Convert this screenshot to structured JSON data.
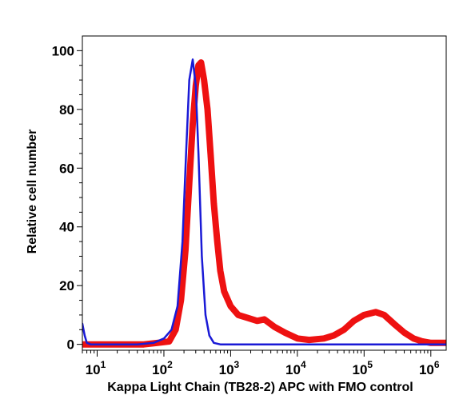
{
  "chart_data": {
    "type": "line",
    "title": "",
    "xlabel": "Kappa Light Chain (TB28-2) APC with FMO control",
    "ylabel": "Relative cell number",
    "x_scale": "log",
    "xlim": [
      6,
      1700000
    ],
    "ylim": [
      -2,
      105
    ],
    "grid": false,
    "legend": "none",
    "y_ticks": [
      {
        "value": 0,
        "label": "0"
      },
      {
        "value": 20,
        "label": "20"
      },
      {
        "value": 40,
        "label": "40"
      },
      {
        "value": 60,
        "label": "60"
      },
      {
        "value": 80,
        "label": "80"
      },
      {
        "value": 100,
        "label": "100"
      }
    ],
    "x_ticks": [
      {
        "value": 10,
        "base": "10",
        "exp": "1"
      },
      {
        "value": 100,
        "base": "10",
        "exp": "2"
      },
      {
        "value": 1000,
        "base": "10",
        "exp": "3"
      },
      {
        "value": 10000,
        "base": "10",
        "exp": "4"
      },
      {
        "value": 100000,
        "base": "10",
        "exp": "5"
      },
      {
        "value": 1000000,
        "base": "10",
        "exp": "6"
      }
    ],
    "series": [
      {
        "color": "#ee1111",
        "stroke": 8,
        "points": [
          [
            6,
            0
          ],
          [
            10,
            0
          ],
          [
            20,
            0
          ],
          [
            50,
            0
          ],
          [
            80,
            0.5
          ],
          [
            120,
            1
          ],
          [
            150,
            5
          ],
          [
            180,
            15
          ],
          [
            210,
            32
          ],
          [
            240,
            55
          ],
          [
            270,
            75
          ],
          [
            300,
            88
          ],
          [
            330,
            95
          ],
          [
            360,
            96
          ],
          [
            400,
            90
          ],
          [
            450,
            80
          ],
          [
            500,
            65
          ],
          [
            560,
            48
          ],
          [
            630,
            35
          ],
          [
            700,
            25
          ],
          [
            800,
            18
          ],
          [
            1000,
            13
          ],
          [
            1300,
            10
          ],
          [
            1800,
            9
          ],
          [
            2500,
            8
          ],
          [
            3200,
            8.5
          ],
          [
            4500,
            6
          ],
          [
            6500,
            4
          ],
          [
            10000,
            2
          ],
          [
            15000,
            1.5
          ],
          [
            25000,
            2
          ],
          [
            35000,
            3
          ],
          [
            50000,
            5
          ],
          [
            70000,
            8
          ],
          [
            100000,
            10
          ],
          [
            150000,
            11
          ],
          [
            200000,
            10
          ],
          [
            280000,
            7
          ],
          [
            400000,
            4
          ],
          [
            550000,
            2
          ],
          [
            750000,
            1
          ],
          [
            1000000,
            0.5
          ],
          [
            1700000,
            0.5
          ]
        ]
      },
      {
        "color": "#1a1ad6",
        "stroke": 2.5,
        "points": [
          [
            6,
            7
          ],
          [
            6.5,
            3
          ],
          [
            7,
            0.5
          ],
          [
            8,
            0
          ],
          [
            15,
            0
          ],
          [
            40,
            0
          ],
          [
            70,
            0.5
          ],
          [
            100,
            2
          ],
          [
            130,
            5
          ],
          [
            160,
            13
          ],
          [
            190,
            35
          ],
          [
            215,
            65
          ],
          [
            240,
            90
          ],
          [
            270,
            97
          ],
          [
            300,
            88
          ],
          [
            330,
            65
          ],
          [
            370,
            30
          ],
          [
            420,
            10
          ],
          [
            480,
            3
          ],
          [
            560,
            0.5
          ],
          [
            700,
            0
          ],
          [
            1000,
            0
          ],
          [
            1000000,
            0
          ],
          [
            1700000,
            0
          ]
        ]
      }
    ]
  }
}
